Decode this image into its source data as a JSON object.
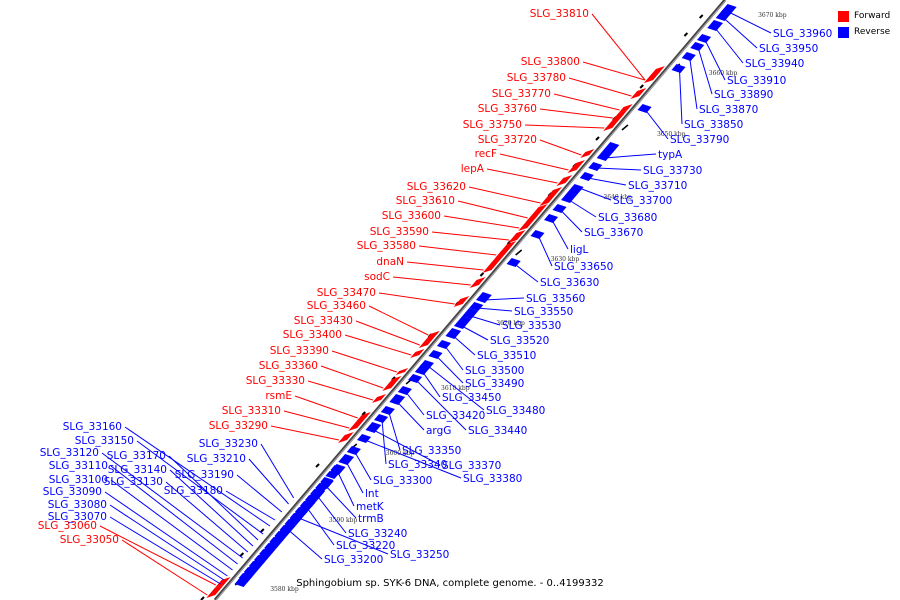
{
  "title": "Sphingobium sp. SYK-6 DNA, complete genome. - 0..4199332",
  "colors": {
    "forward": "#ff0000",
    "reverse": "#0000ff",
    "backbone": "#808080"
  },
  "legend": [
    {
      "label": "Forward",
      "color": "#ff0000"
    },
    {
      "label": "Reverse",
      "color": "#0000ff"
    }
  ],
  "scale_ticks": [
    "3580 kbp",
    "3590 kbp",
    "3600 kbp",
    "3610 kbp",
    "3620 kbp",
    "3630 kbp",
    "3640 kbp",
    "3650 kbp",
    "3660 kbp",
    "3670 kbp"
  ],
  "forward_genes": [
    "SLG_33810",
    "SLG_33800",
    "SLG_33780",
    "SLG_33770",
    "SLG_33760",
    "SLG_33750",
    "SLG_33720",
    "recF",
    "lepA",
    "SLG_33620",
    "SLG_33610",
    "SLG_33600",
    "SLG_33590",
    "SLG_33580",
    "dnaN",
    "sodC",
    "SLG_33470",
    "SLG_33460",
    "SLG_33430",
    "SLG_33400",
    "SLG_33390",
    "SLG_33360",
    "SLG_33330",
    "rsmE",
    "SLG_33310",
    "SLG_33290",
    "SLG_33060",
    "SLG_33050"
  ],
  "reverse_genes": [
    "SLG_33960",
    "SLG_33950",
    "SLG_33940",
    "SLG_33910",
    "SLG_33890",
    "SLG_33870",
    "SLG_33850",
    "SLG_33790",
    "typA",
    "SLG_33730",
    "SLG_33710",
    "SLG_33700",
    "SLG_33680",
    "SLG_33670",
    "ligL",
    "SLG_33650",
    "SLG_33630",
    "SLG_33560",
    "SLG_33550",
    "SLG_33530",
    "SLG_33520",
    "SLG_33510",
    "SLG_33500",
    "SLG_33490",
    "SLG_33480",
    "SLG_33450",
    "SLG_33440",
    "SLG_33420",
    "argG",
    "SLG_33350",
    "SLG_33340",
    "SLG_33370",
    "SLG_33380",
    "SLG_33300",
    "lnt",
    "metK",
    "trmB",
    "SLG_33240",
    "SLG_33220",
    "SLG_33250",
    "SLG_33200",
    "SLG_33230",
    "SLG_33210",
    "SLG_33190",
    "SLG_33180",
    "SLG_33160",
    "SLG_33150",
    "SLG_33170",
    "SLG_33140",
    "SLG_33130",
    "SLG_33120",
    "SLG_33110",
    "SLG_33100",
    "SLG_33090",
    "SLG_33080",
    "SLG_33070"
  ]
}
